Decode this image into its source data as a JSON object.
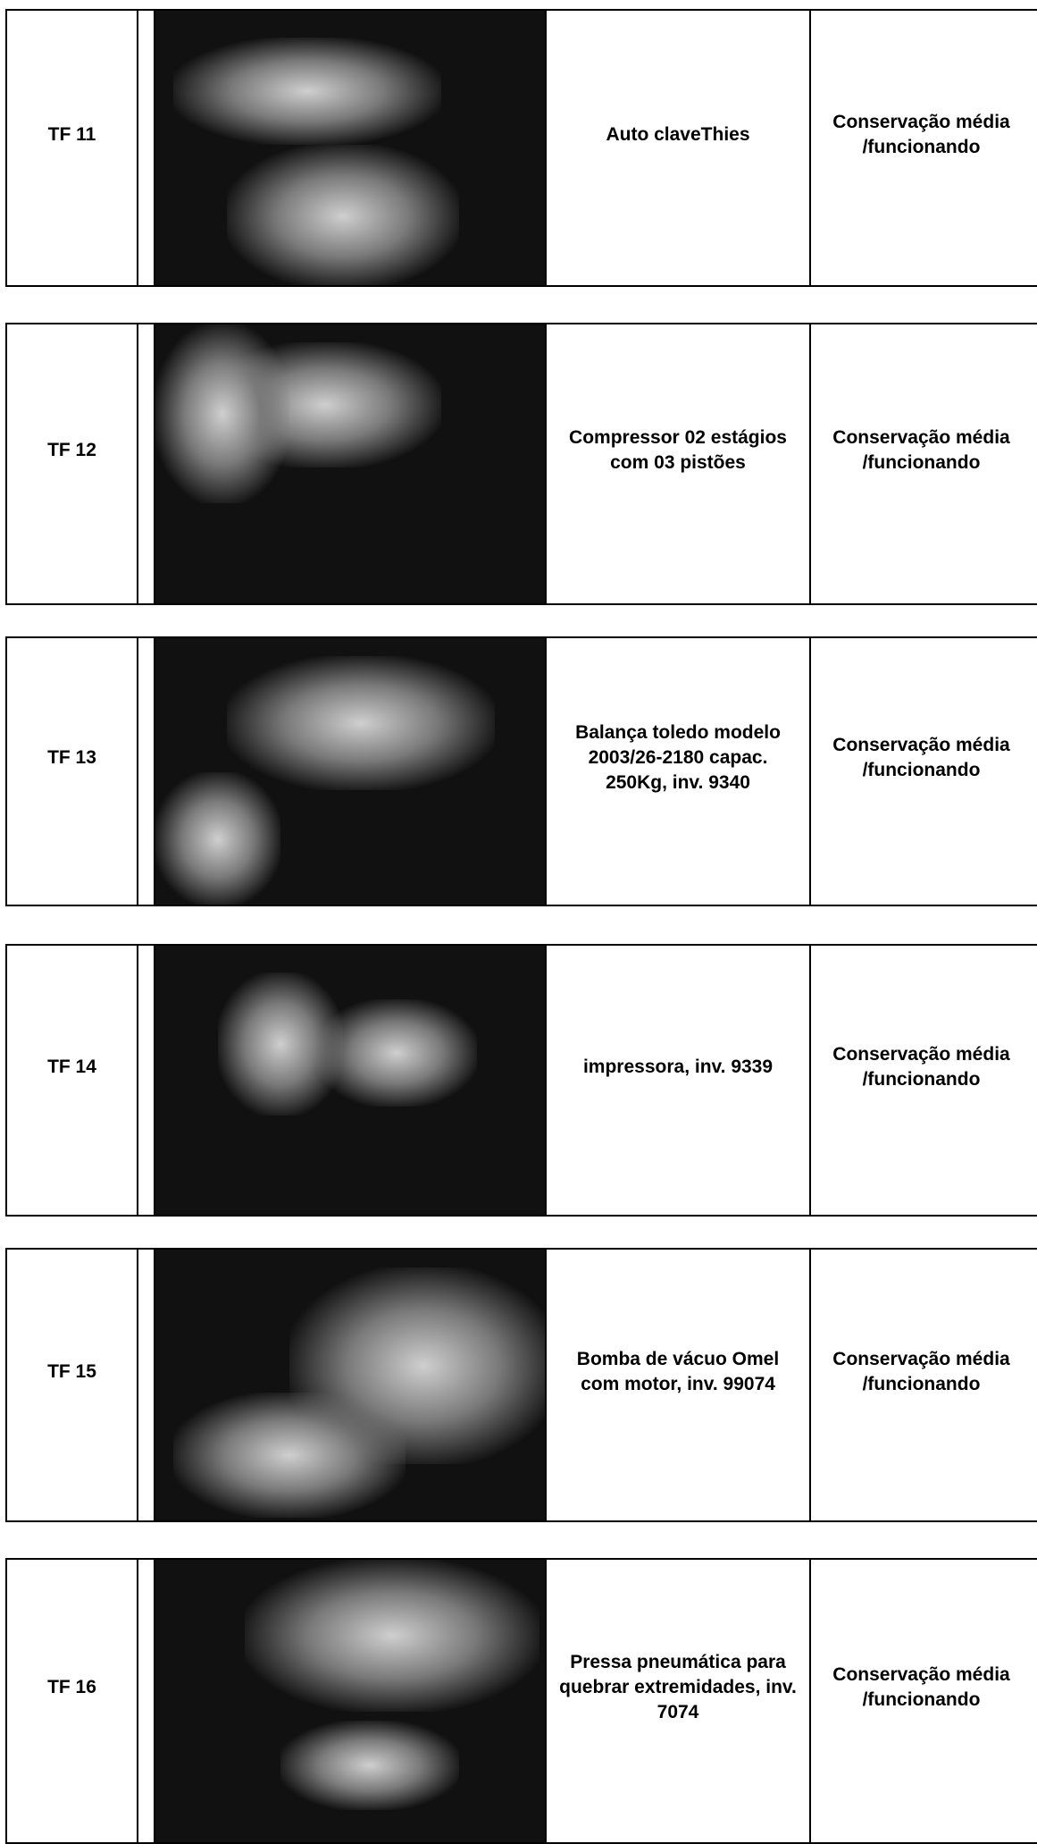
{
  "table": {
    "rows": [
      {
        "id": "TF 11",
        "description": "Auto claveThies",
        "condition": "Conservação média /funcionando"
      },
      {
        "id": "TF 12",
        "description": "Compressor 02 estágios com 03 pistões",
        "condition": "Conservação média /funcionando"
      },
      {
        "id": "TF 13",
        "description": "Balança toledo modelo 2003/26-2180 capac. 250Kg, inv. 9340",
        "condition": "Conservação média /funcionando"
      },
      {
        "id": "TF 14",
        "description": "impressora, inv. 9339",
        "condition": "Conservação média /funcionando"
      },
      {
        "id": "TF 15",
        "description": "Bomba de vácuo Omel com motor, inv. 99074",
        "condition": "Conservação média /funcionando"
      },
      {
        "id": "TF 16",
        "description": "Pressa pneumática para quebrar extremidades, inv. 7074",
        "condition": "Conservação média /funcionando"
      }
    ]
  }
}
